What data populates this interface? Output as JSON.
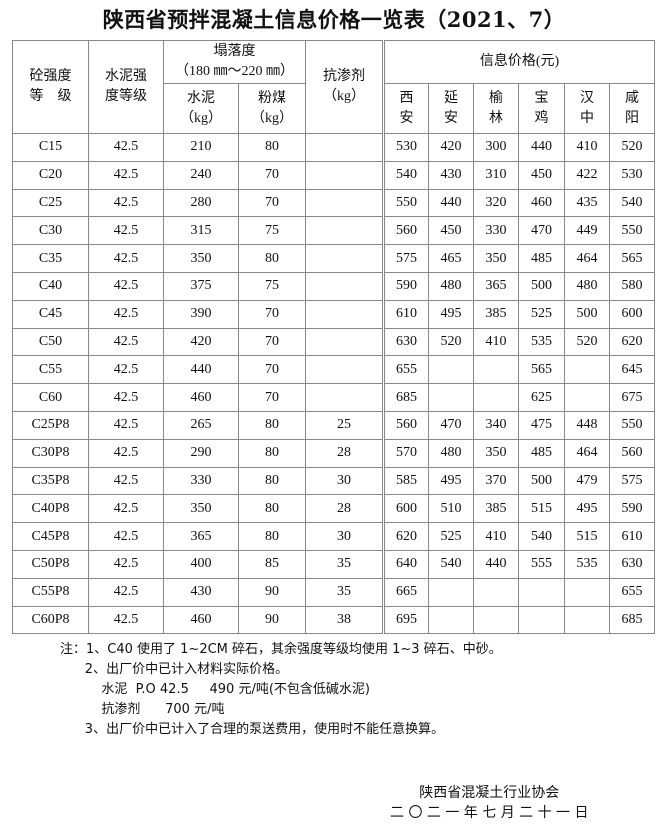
{
  "title": "陕西省预拌混凝土信息价格一览表（2021、7）",
  "header": {
    "grade": "砼强度\n等　级",
    "cement_grade": "水泥强\n度等级",
    "slump": "塌落度\n（180 ㎜～220 ㎜）",
    "cement": "水泥\n（kg）",
    "flyash": "粉煤\n（kg）",
    "admixture": "抗渗剂\n（kg）",
    "price": "信息价格(元)",
    "cities": [
      "西\n安",
      "延\n安",
      "榆\n林",
      "宝\n鸡",
      "汉\n中",
      "咸\n阳"
    ]
  },
  "rows": [
    [
      "C15",
      "42.5",
      "210",
      "80",
      "",
      "530",
      "420",
      "300",
      "440",
      "410",
      "520"
    ],
    [
      "C20",
      "42.5",
      "240",
      "70",
      "",
      "540",
      "430",
      "310",
      "450",
      "422",
      "530"
    ],
    [
      "C25",
      "42.5",
      "280",
      "70",
      "",
      "550",
      "440",
      "320",
      "460",
      "435",
      "540"
    ],
    [
      "C30",
      "42.5",
      "315",
      "75",
      "",
      "560",
      "450",
      "330",
      "470",
      "449",
      "550"
    ],
    [
      "C35",
      "42.5",
      "350",
      "80",
      "",
      "575",
      "465",
      "350",
      "485",
      "464",
      "565"
    ],
    [
      "C40",
      "42.5",
      "375",
      "75",
      "",
      "590",
      "480",
      "365",
      "500",
      "480",
      "580"
    ],
    [
      "C45",
      "42.5",
      "390",
      "70",
      "",
      "610",
      "495",
      "385",
      "525",
      "500",
      "600"
    ],
    [
      "C50",
      "42.5",
      "420",
      "70",
      "",
      "630",
      "520",
      "410",
      "535",
      "520",
      "620"
    ],
    [
      "C55",
      "42.5",
      "440",
      "70",
      "",
      "655",
      "",
      "",
      "565",
      "",
      "645"
    ],
    [
      "C60",
      "42.5",
      "460",
      "70",
      "",
      "685",
      "",
      "",
      "625",
      "",
      "675"
    ],
    [
      "C25P8",
      "42.5",
      "265",
      "80",
      "25",
      "560",
      "470",
      "340",
      "475",
      "448",
      "550"
    ],
    [
      "C30P8",
      "42.5",
      "290",
      "80",
      "28",
      "570",
      "480",
      "350",
      "485",
      "464",
      "560"
    ],
    [
      "C35P8",
      "42.5",
      "330",
      "80",
      "30",
      "585",
      "495",
      "370",
      "500",
      "479",
      "575"
    ],
    [
      "C40P8",
      "42.5",
      "350",
      "80",
      "28",
      "600",
      "510",
      "385",
      "515",
      "495",
      "590"
    ],
    [
      "C45P8",
      "42.5",
      "365",
      "80",
      "30",
      "620",
      "525",
      "410",
      "540",
      "515",
      "610"
    ],
    [
      "C50P8",
      "42.5",
      "400",
      "85",
      "35",
      "640",
      "540",
      "440",
      "555",
      "535",
      "630"
    ],
    [
      "C55P8",
      "42.5",
      "430",
      "90",
      "35",
      "665",
      "",
      "",
      "",
      "",
      "655"
    ],
    [
      "C60P8",
      "42.5",
      "460",
      "90",
      "38",
      "695",
      "",
      "",
      "",
      "",
      "685"
    ]
  ],
  "notes": [
    "注：1、C40 使用了 1~2CM 碎石，其余强度等级均使用 1~3 碎石、中砂。",
    "      2、出厂价中已计入材料实际价格。",
    "          水泥  P.O 42.5     490 元/吨(不包含低碱水泥)",
    "          抗渗剂      700 元/吨",
    "      3、出厂价中已计入了合理的泵送费用，使用时不能任意换算。"
  ],
  "signature": {
    "org": "陕西省混凝土行业协会",
    "date": "二 〇 二 一 年 七 月 二 十 一 日"
  }
}
